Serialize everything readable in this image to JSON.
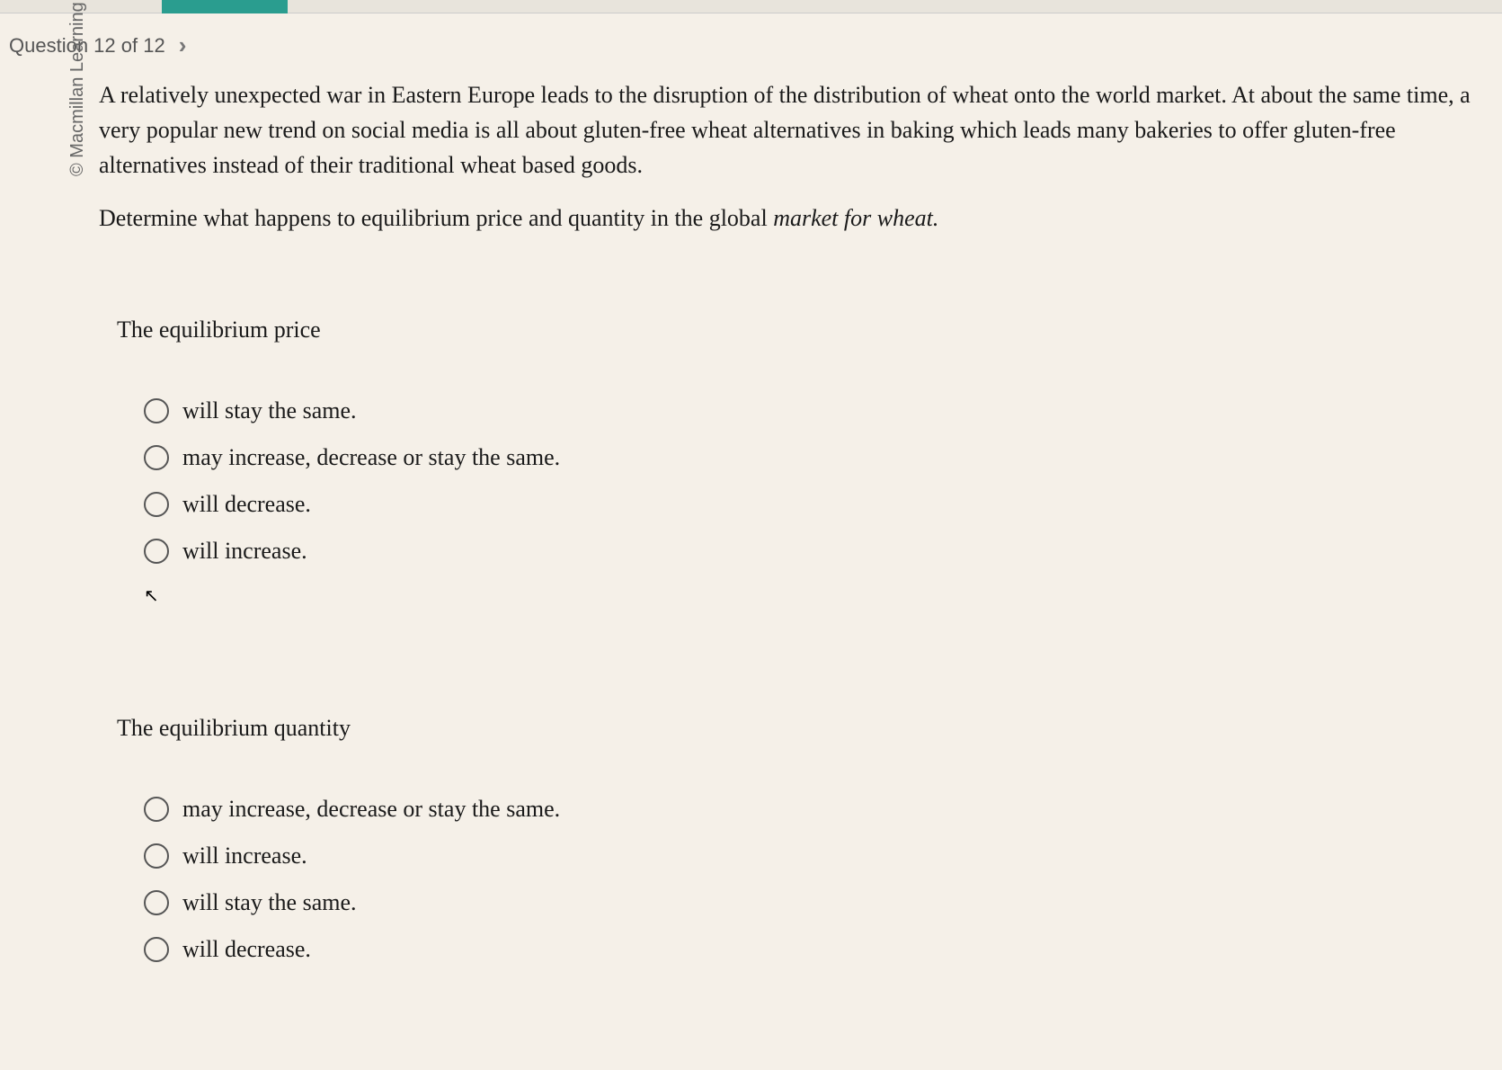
{
  "nav": {
    "question_label": "Question 12 of 12"
  },
  "copyright": "© Macmillan Learning",
  "question": {
    "paragraph1": "A relatively unexpected war in Eastern Europe leads to the disruption of the distribution of wheat onto the world market. At about the same time, a very popular new trend on social media is all about gluten-free wheat alternatives in baking which leads many bakeries to offer gluten-free alternatives instead of their traditional wheat based goods.",
    "paragraph2_prefix": "Determine what happens to equilibrium price and quantity in the global ",
    "paragraph2_italic": "market for wheat."
  },
  "group1": {
    "title": "The equilibrium price",
    "options": [
      "will stay the same.",
      "may increase, decrease or stay the same.",
      "will decrease.",
      "will increase."
    ]
  },
  "group2": {
    "title": "The equilibrium quantity",
    "options": [
      "may increase, decrease or stay the same.",
      "will increase.",
      "will stay the same.",
      "will decrease."
    ]
  },
  "colors": {
    "background": "#f5f0e8",
    "text": "#1a1a1a",
    "nav_text": "#555",
    "teal_accent": "#2a9d8f",
    "radio_border": "#555"
  }
}
